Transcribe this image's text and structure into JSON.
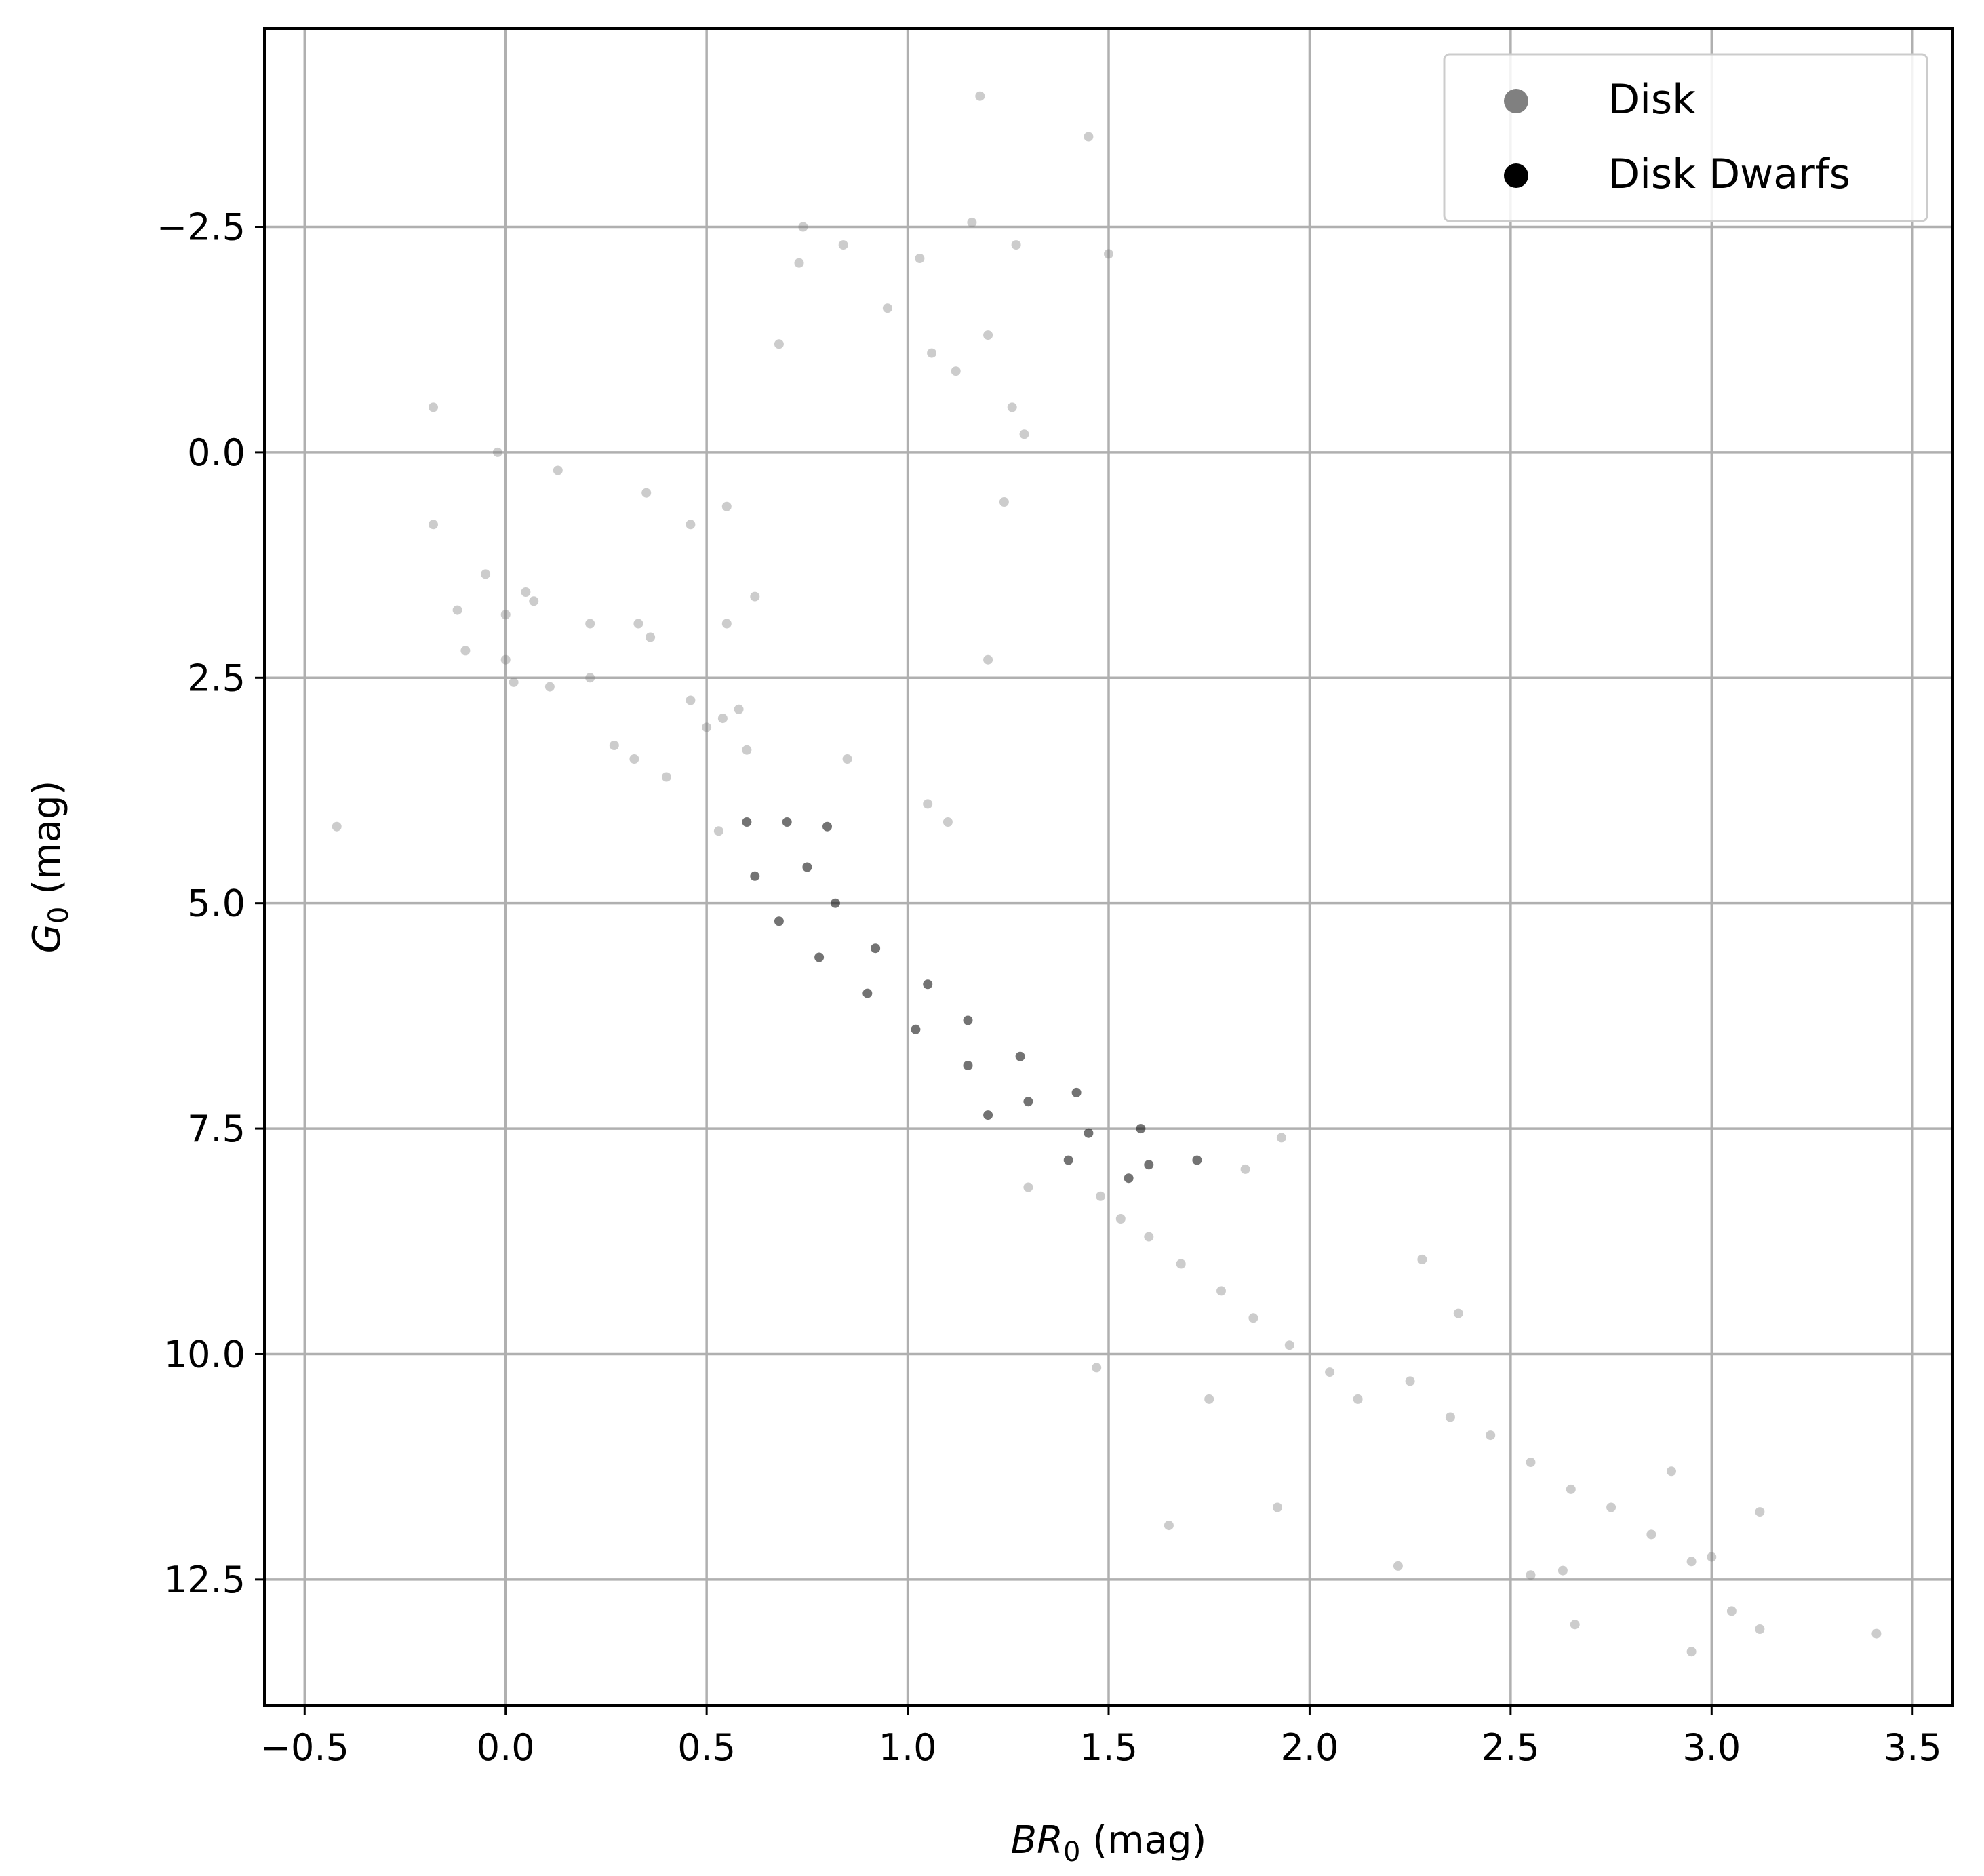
{
  "chart_data": {
    "type": "scatter",
    "title": "",
    "xlabel": {
      "base": "BR",
      "sub": "0",
      "unit": " (mag)"
    },
    "ylabel": {
      "base": "G",
      "sub": "0",
      "unit": " (mag)"
    },
    "xlim": [
      -0.6,
      3.6
    ],
    "ylim": [
      13.9,
      -4.7
    ],
    "y_inverted": true,
    "grid": true,
    "legend_position": "top-right",
    "xticks": [
      -0.5,
      0.0,
      0.5,
      1.0,
      1.5,
      2.0,
      2.5,
      3.0,
      3.5
    ],
    "xtick_labels": [
      "−0.5",
      "0.0",
      "0.5",
      "1.0",
      "1.5",
      "2.0",
      "2.5",
      "3.0",
      "3.5"
    ],
    "yticks": [
      -2.5,
      0.0,
      2.5,
      5.0,
      7.5,
      10.0,
      12.5
    ],
    "ytick_labels": [
      "−2.5",
      "0.0",
      "2.5",
      "5.0",
      "7.5",
      "10.0",
      "12.5"
    ],
    "series": [
      {
        "name": "Disk",
        "color": "#808080",
        "alpha": 0.4,
        "points": [
          [
            1.18,
            -3.95
          ],
          [
            1.45,
            -3.5
          ],
          [
            1.16,
            -2.55
          ],
          [
            1.27,
            -2.3
          ],
          [
            1.5,
            -2.2
          ],
          [
            0.74,
            -2.5
          ],
          [
            0.84,
            -2.3
          ],
          [
            1.03,
            -2.15
          ],
          [
            0.73,
            -2.1
          ],
          [
            0.68,
            -1.2
          ],
          [
            0.95,
            -1.6
          ],
          [
            1.06,
            -1.1
          ],
          [
            1.2,
            -1.3
          ],
          [
            1.12,
            -0.9
          ],
          [
            1.26,
            -0.5
          ],
          [
            1.29,
            -0.2
          ],
          [
            -0.18,
            -0.5
          ],
          [
            -0.02,
            0.0
          ],
          [
            0.13,
            0.2
          ],
          [
            -0.18,
            0.8
          ],
          [
            0.35,
            0.45
          ],
          [
            0.46,
            0.8
          ],
          [
            0.55,
            0.6
          ],
          [
            1.24,
            0.55
          ],
          [
            -0.05,
            1.35
          ],
          [
            0.05,
            1.55
          ],
          [
            0.0,
            1.8
          ],
          [
            0.07,
            1.65
          ],
          [
            -0.12,
            1.75
          ],
          [
            -0.1,
            2.2
          ],
          [
            0.0,
            2.3
          ],
          [
            0.02,
            2.55
          ],
          [
            0.11,
            2.6
          ],
          [
            0.21,
            1.9
          ],
          [
            0.21,
            2.5
          ],
          [
            0.33,
            1.9
          ],
          [
            0.36,
            2.05
          ],
          [
            -0.42,
            4.15
          ],
          [
            0.27,
            3.25
          ],
          [
            0.32,
            3.4
          ],
          [
            0.4,
            3.6
          ],
          [
            0.53,
            4.2
          ],
          [
            0.6,
            3.3
          ],
          [
            0.85,
            3.4
          ],
          [
            1.1,
            4.1
          ],
          [
            1.05,
            3.9
          ],
          [
            1.2,
            2.3
          ],
          [
            0.62,
            1.6
          ],
          [
            0.55,
            1.9
          ],
          [
            0.46,
            2.75
          ],
          [
            0.54,
            2.95
          ],
          [
            0.5,
            3.05
          ],
          [
            0.58,
            2.85
          ],
          [
            1.48,
            8.25
          ],
          [
            1.53,
            8.5
          ],
          [
            1.6,
            8.7
          ],
          [
            1.68,
            9.0
          ],
          [
            1.78,
            9.3
          ],
          [
            1.86,
            9.6
          ],
          [
            1.95,
            9.9
          ],
          [
            2.05,
            10.2
          ],
          [
            2.12,
            10.5
          ],
          [
            2.25,
            10.3
          ],
          [
            2.35,
            10.7
          ],
          [
            2.45,
            10.9
          ],
          [
            2.55,
            11.2
          ],
          [
            2.65,
            11.5
          ],
          [
            2.75,
            11.7
          ],
          [
            2.85,
            12.0
          ],
          [
            2.95,
            12.3
          ],
          [
            3.0,
            12.25
          ],
          [
            3.12,
            11.75
          ],
          [
            3.41,
            13.1
          ],
          [
            3.12,
            13.05
          ],
          [
            2.95,
            13.3
          ],
          [
            2.66,
            13.0
          ],
          [
            2.55,
            12.45
          ],
          [
            2.22,
            12.35
          ],
          [
            1.47,
            10.15
          ],
          [
            2.37,
            9.55
          ],
          [
            1.93,
            7.6
          ],
          [
            1.84,
            7.95
          ],
          [
            2.28,
            8.95
          ],
          [
            1.3,
            8.15
          ],
          [
            1.65,
            11.9
          ],
          [
            1.92,
            11.7
          ],
          [
            1.75,
            10.5
          ],
          [
            2.63,
            12.4
          ],
          [
            3.05,
            12.85
          ],
          [
            2.9,
            11.3
          ]
        ]
      },
      {
        "name": "Disk Dwarfs",
        "color": "#000000",
        "alpha": 0.55,
        "points": [
          [
            0.6,
            4.1
          ],
          [
            0.7,
            4.1
          ],
          [
            0.8,
            4.15
          ],
          [
            0.62,
            4.7
          ],
          [
            0.75,
            4.6
          ],
          [
            0.68,
            5.2
          ],
          [
            0.82,
            5.0
          ],
          [
            0.78,
            5.6
          ],
          [
            0.92,
            5.5
          ],
          [
            0.9,
            6.0
          ],
          [
            1.05,
            5.9
          ],
          [
            1.02,
            6.4
          ],
          [
            1.15,
            6.3
          ],
          [
            1.15,
            6.8
          ],
          [
            1.28,
            6.7
          ],
          [
            1.3,
            7.2
          ],
          [
            1.42,
            7.1
          ],
          [
            1.45,
            7.55
          ],
          [
            1.58,
            7.5
          ],
          [
            1.6,
            7.9
          ],
          [
            1.72,
            7.85
          ],
          [
            1.55,
            8.05
          ],
          [
            1.4,
            7.85
          ],
          [
            1.2,
            7.35
          ]
        ]
      }
    ]
  }
}
